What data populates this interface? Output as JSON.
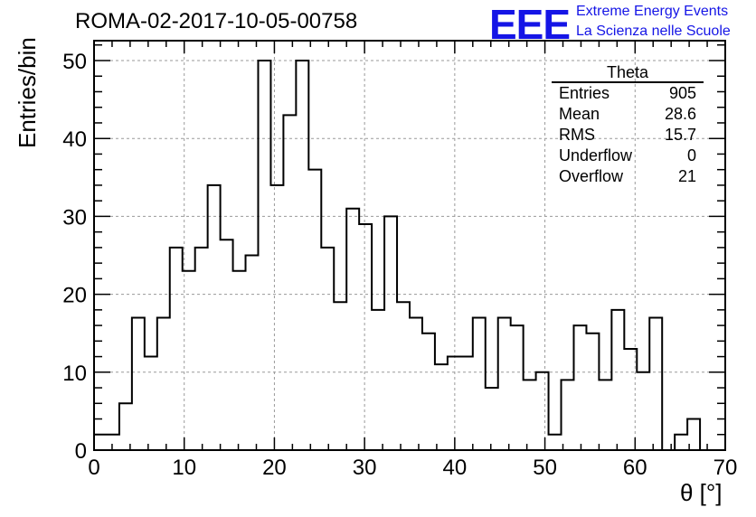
{
  "header": {
    "run_title": "ROMA-02-2017-10-05-00758",
    "logo_text": "EEE",
    "logo_line1": "Extreme Energy Events",
    "logo_line2": "La Scienza nelle Scuole"
  },
  "stats_box": {
    "title": "Theta",
    "rows": [
      {
        "label": "Entries",
        "value": "905"
      },
      {
        "label": "Mean",
        "value": "28.6"
      },
      {
        "label": "RMS",
        "value": "15.7"
      },
      {
        "label": "Underflow",
        "value": "0"
      },
      {
        "label": "Overflow",
        "value": "21"
      }
    ]
  },
  "colors": {
    "histogram": "#000000",
    "grid": "#9a9a9a",
    "logo": "#1515e6"
  },
  "chart_data": {
    "type": "bar",
    "style": "step histogram",
    "xlabel": "θ [°]",
    "ylabel": "Entries/bin",
    "xlim": [
      0,
      70
    ],
    "ylim": [
      0,
      52
    ],
    "grid": true,
    "legend": "stats box top-right",
    "xticks": [
      "0",
      "10",
      "20",
      "30",
      "40",
      "50",
      "60",
      "70"
    ],
    "yticks": [
      "0",
      "10",
      "20",
      "30",
      "40",
      "50"
    ],
    "bin_width": 1.4,
    "bin_start": 0,
    "values": [
      2,
      2,
      6,
      17,
      12,
      17,
      26,
      23,
      26,
      34,
      27,
      23,
      25,
      50,
      34,
      43,
      50,
      36,
      26,
      19,
      31,
      29,
      18,
      30,
      19,
      17,
      15,
      11,
      12,
      12,
      17,
      8,
      17,
      16,
      9,
      10,
      2,
      9,
      16,
      15,
      9,
      18,
      13,
      10,
      17,
      0,
      2,
      4
    ]
  }
}
